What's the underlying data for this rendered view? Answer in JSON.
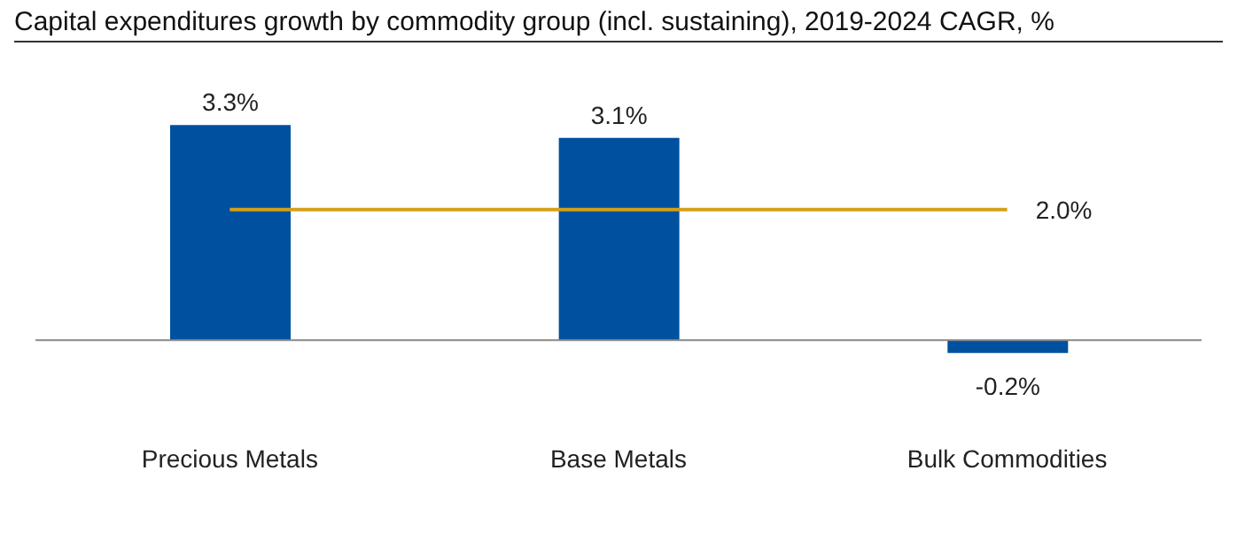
{
  "chart_data": {
    "type": "bar",
    "title": "Capital expenditures growth by commodity group (incl. sustaining), 2019-2024 CAGR, %",
    "categories": [
      "Precious Metals",
      "Base Metals",
      "Bulk Commodities"
    ],
    "values": [
      3.3,
      3.1,
      -0.2
    ],
    "value_labels": [
      "3.3%",
      "3.1%",
      "-0.2%"
    ],
    "color": "#0050a0",
    "tick_labels": "x",
    "grid": false,
    "legend": false,
    "ref_lines": [
      {
        "axis": "y",
        "value": 2.0,
        "label": "2.0%",
        "color": "#d4a017"
      }
    ]
  }
}
